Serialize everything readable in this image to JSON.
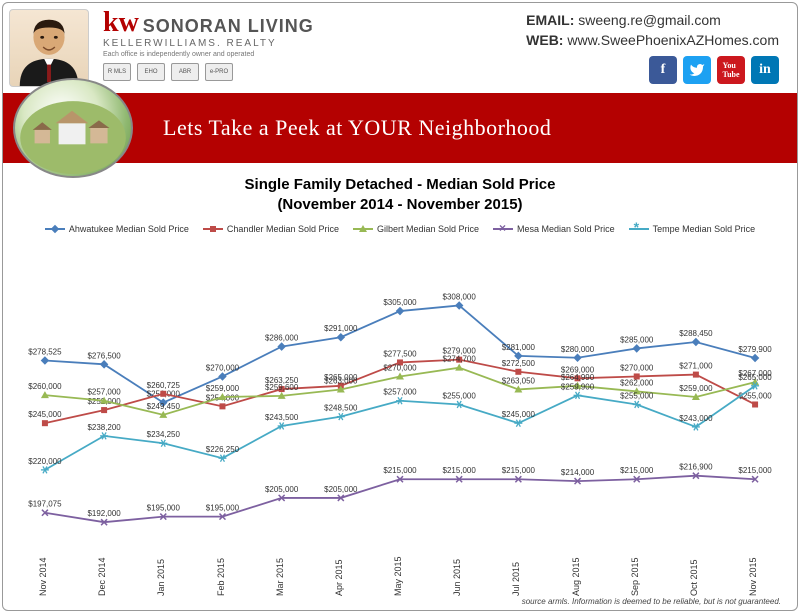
{
  "header": {
    "brand_kw": "kw",
    "brand_name": "SONORAN LIVING",
    "brand_sub": "KELLERWILLIAMS. REALTY",
    "tagline": "Each office is independently owner and operated",
    "certs": [
      "R MLS",
      "EHO",
      "ABR",
      "e-PRO"
    ],
    "email_label": "EMAIL:",
    "email": "sweeng.re@gmail.com",
    "web_label": "WEB:",
    "web": "www.SweePhoenixAZHomes.com"
  },
  "banner": {
    "text": "Lets Take a Peek at YOUR Neighborhood"
  },
  "chart": {
    "title_line1": "Single Family Detached - Median Sold Price",
    "title_line2": "(November 2014 - November 2015)",
    "type": "line",
    "background_color": "#ffffff",
    "title_fontsize": 15,
    "label_fontsize": 8,
    "x_categories": [
      "Nov 2014",
      "Dec 2014",
      "Jan 2015",
      "Feb 2015",
      "Mar 2015",
      "Apr 2015",
      "May 2015",
      "Jun 2015",
      "Jul 2015",
      "Aug 2015",
      "Sep 2015",
      "Oct 2015",
      "Nov 2015"
    ],
    "ylim": [
      175000,
      320000
    ],
    "series": [
      {
        "name": "Ahwatukee Median Sold Price",
        "color": "#4a7ebb",
        "marker": "diamond",
        "values": [
          278525,
          276500,
          256000,
          270000,
          286000,
          291000,
          305000,
          308000,
          281000,
          280000,
          285000,
          288450,
          279900
        ],
        "labels": [
          "$278,525",
          "$276,500",
          "$256,000",
          "$270,000",
          "$286,000",
          "$291,000",
          "$305,000",
          "$308,000",
          "$281,000",
          "$280,000",
          "$285,000",
          "$288,450",
          "$279,900"
        ]
      },
      {
        "name": "Chandler Median Sold Price",
        "color": "#be4b48",
        "marker": "square",
        "values": [
          245000,
          252000,
          260725,
          254000,
          263250,
          265000,
          277500,
          279000,
          272500,
          269000,
          270000,
          271000,
          255000
        ],
        "labels": [
          "$245,000",
          "$252,000",
          "$260,725",
          "$254,000",
          "$263,250",
          "$265,000",
          "$277,500",
          "$279,000",
          "$272,500",
          "$269,000",
          "$270,000",
          "$271,000",
          "$255,000"
        ]
      },
      {
        "name": "Gilbert Median Sold Price",
        "color": "#98b954",
        "marker": "triangle",
        "values": [
          260000,
          257000,
          249450,
          259000,
          259600,
          263000,
          270000,
          274700,
          263050,
          264990,
          262000,
          259000,
          267000
        ],
        "labels": [
          "$260,000",
          "$257,000",
          "$249,450",
          "$259,000",
          "$259,600",
          "$263,000",
          "$270,000",
          "$274,700",
          "$263,050",
          "$264,990",
          "$262,000",
          "$259,000",
          "$267,000"
        ]
      },
      {
        "name": "Mesa Median Sold Price",
        "color": "#7d60a0",
        "marker": "x",
        "values": [
          197075,
          192000,
          195000,
          195000,
          205000,
          205000,
          215000,
          215000,
          215000,
          214000,
          215000,
          216900,
          215000
        ],
        "labels": [
          "$197,075",
          "$192,000",
          "$195,000",
          "$195,000",
          "$205,000",
          "$205,000",
          "$215,000",
          "$215,000",
          "$215,000",
          "$214,000",
          "$215,000",
          "$216,900",
          "$215,000"
        ]
      },
      {
        "name": "Tempe Median Sold Price",
        "color": "#46aac5",
        "marker": "star",
        "values": [
          220000,
          238200,
          234250,
          226250,
          243500,
          248500,
          257000,
          255000,
          245000,
          259900,
          255000,
          243000,
          265000
        ],
        "labels": [
          "$220,000",
          "$238,200",
          "$234,250",
          "$226,250",
          "$243,500",
          "$248,500",
          "$257,000",
          "$255,000",
          "$245,000",
          "$259,900",
          "$255,000",
          "$243,000",
          "$265,000"
        ]
      }
    ]
  },
  "footer": {
    "note": "source armls. Information is deemed to be reliable, but is not guaranteed."
  }
}
